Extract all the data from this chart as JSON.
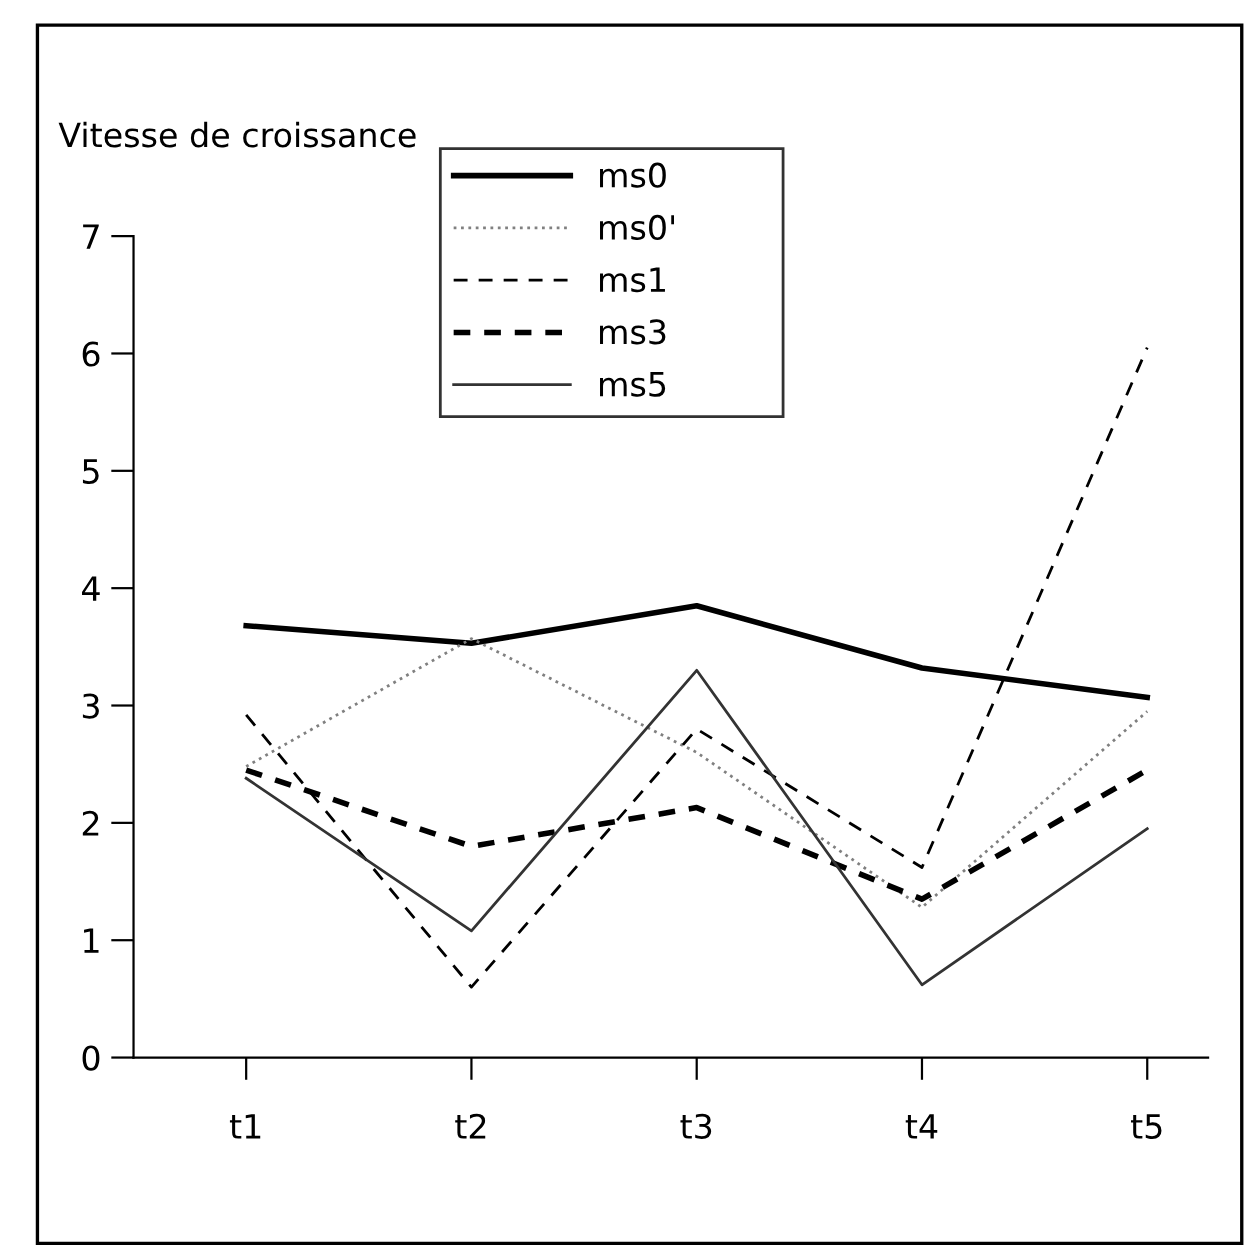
{
  "chart_data": {
    "type": "line",
    "ylabel": "Vitesse de croissance",
    "categories": [
      "t1",
      "t2",
      "t3",
      "t4",
      "t5"
    ],
    "series": [
      {
        "name": "ms0",
        "color": "#000000",
        "line_style": "solid",
        "values": [
          3.68,
          3.53,
          3.85,
          3.32,
          3.07
        ]
      },
      {
        "name": "ms0'",
        "color": "#808080",
        "line_style": "dotted",
        "values": [
          2.48,
          3.57,
          2.6,
          1.28,
          2.95
        ]
      },
      {
        "name": "ms1",
        "color": "#000000",
        "line_style": "dashed",
        "values": [
          2.92,
          0.6,
          2.8,
          1.62,
          6.05
        ]
      },
      {
        "name": "ms3",
        "color": "#000000",
        "line_style": "dashed",
        "values": [
          2.45,
          1.8,
          2.13,
          1.35,
          2.45
        ]
      },
      {
        "name": "ms5",
        "color": "#333333",
        "line_style": "solid",
        "values": [
          2.38,
          1.08,
          3.3,
          0.62,
          1.95
        ]
      }
    ],
    "ylim": [
      0,
      7
    ],
    "yticks": [
      0,
      1,
      2,
      3,
      4,
      5,
      6,
      7
    ],
    "grid": false,
    "legend": "top",
    "marker": "none"
  }
}
